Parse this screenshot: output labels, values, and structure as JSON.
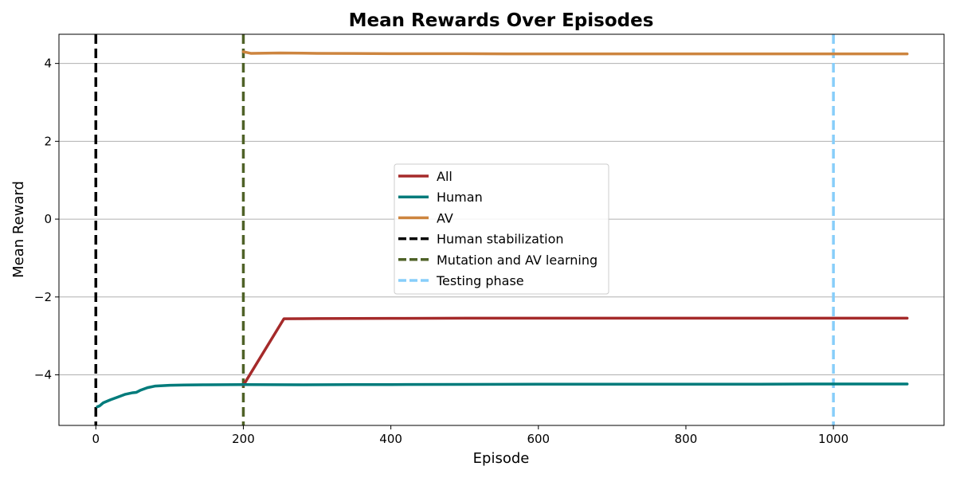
{
  "chart_data": {
    "type": "line",
    "title": "Mean Rewards Over Episodes",
    "xlabel": "Episode",
    "ylabel": "Mean Reward",
    "xlim": [
      -50,
      1150
    ],
    "ylim": [
      -5.3,
      4.75
    ],
    "xticks": [
      0,
      200,
      400,
      600,
      800,
      1000
    ],
    "yticks": [
      -4,
      -2,
      0,
      2,
      4
    ],
    "xtick_labels": [
      "0",
      "200",
      "400",
      "600",
      "800",
      "1000"
    ],
    "ytick_labels": [
      "−4",
      "−2",
      "0",
      "2",
      "4"
    ],
    "grid": "horizontal",
    "legend_position": "center",
    "series": [
      {
        "name": "All",
        "color": "#a52a2a",
        "style": "solid",
        "x": [
          200,
          255,
          300,
          400,
          500,
          600,
          700,
          800,
          900,
          1000,
          1100
        ],
        "y": [
          -4.27,
          -2.56,
          -2.555,
          -2.55,
          -2.545,
          -2.545,
          -2.545,
          -2.545,
          -2.545,
          -2.545,
          -2.545
        ]
      },
      {
        "name": "Human",
        "color": "#007b7b",
        "style": "solid",
        "x": [
          2,
          5,
          10,
          20,
          30,
          40,
          50,
          55,
          60,
          70,
          80,
          100,
          120,
          150,
          200,
          280,
          350,
          400,
          500,
          600,
          700,
          800,
          900,
          1000,
          1100
        ],
        "y": [
          -4.82,
          -4.8,
          -4.72,
          -4.64,
          -4.57,
          -4.5,
          -4.46,
          -4.45,
          -4.4,
          -4.33,
          -4.29,
          -4.27,
          -4.26,
          -4.255,
          -4.25,
          -4.255,
          -4.25,
          -4.25,
          -4.245,
          -4.24,
          -4.24,
          -4.24,
          -4.24,
          -4.235,
          -4.235
        ]
      },
      {
        "name": "AV",
        "color": "#cd853f",
        "style": "solid",
        "x": [
          200,
          205,
          210,
          250,
          300,
          350,
          400,
          500,
          600,
          700,
          800,
          900,
          1000,
          1100
        ],
        "y": [
          4.3,
          4.28,
          4.26,
          4.27,
          4.26,
          4.255,
          4.25,
          4.25,
          4.245,
          4.245,
          4.245,
          4.245,
          4.245,
          4.245
        ]
      }
    ],
    "vlines": [
      {
        "name": "Human stabilization",
        "x": 0,
        "color": "#000000",
        "style": "dashed"
      },
      {
        "name": "Mutation and AV learning",
        "x": 200,
        "color": "#4f6228",
        "style": "dashed"
      },
      {
        "name": "Testing phase",
        "x": 1000,
        "color": "#87cefa",
        "style": "dashed"
      }
    ]
  }
}
